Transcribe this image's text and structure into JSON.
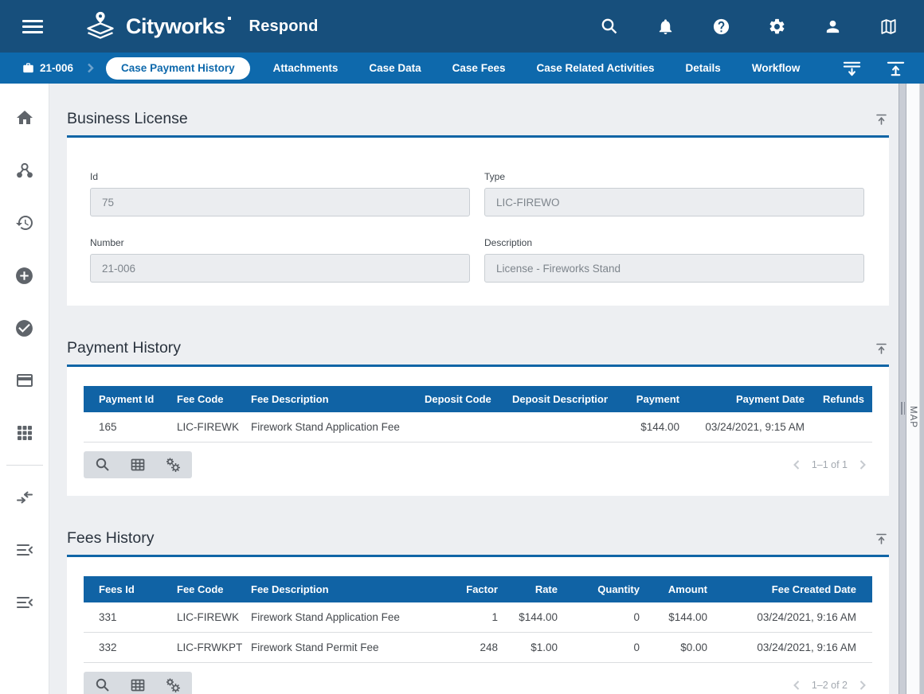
{
  "app": {
    "brand": "Cityworks",
    "product": "Respond"
  },
  "header": {
    "icons": [
      "menu-icon",
      "search-icon",
      "notifications-bell-icon",
      "help-icon",
      "settings-gear-icon",
      "user-icon",
      "map-icon"
    ]
  },
  "case_nav": {
    "case_id": "21-006",
    "active_tab": "Case Payment History",
    "tabs": [
      "Attachments",
      "Case Data",
      "Case Fees",
      "Case Related Activities",
      "Details",
      "Workflow"
    ],
    "icons": [
      "briefcase-icon",
      "expand-all-sections-icon",
      "scroll-to-top-icon"
    ]
  },
  "sidebar": {
    "icons": [
      "home-icon",
      "relationships-icon",
      "history-icon",
      "add-circle-icon",
      "check-circle-icon",
      "credit-card-icon",
      "apps-grid-icon",
      "dock-panel-icon",
      "collapse-menu-icon",
      "collapse-menu-icon"
    ]
  },
  "business_license": {
    "title": "Business License",
    "fields": [
      {
        "label": "Id",
        "value": "75"
      },
      {
        "label": "Type",
        "value": "LIC-FIREWO"
      },
      {
        "label": "Number",
        "value": "21-006"
      },
      {
        "label": "Description",
        "value": "License - Fireworks Stand"
      }
    ]
  },
  "payment_history": {
    "title": "Payment History",
    "columns": [
      "Payment Id",
      "Fee Code",
      "Fee Description",
      "Deposit Code",
      "Deposit Description",
      "Payment",
      "Payment Date",
      "Refunds"
    ],
    "rows": [
      [
        "165",
        "LIC-FIREWK",
        "Firework Stand Application Fee",
        "",
        "",
        "$144.00",
        "03/24/2021, 9:15 AM",
        ""
      ]
    ],
    "pager": "1–1 of 1"
  },
  "fees_history": {
    "title": "Fees History",
    "columns": [
      "Fees Id",
      "Fee Code",
      "Fee Description",
      "Factor",
      "Rate",
      "Quantity",
      "Amount",
      "Fee Created Date"
    ],
    "rows": [
      [
        "331",
        "LIC-FIREWK",
        "Firework Stand Application Fee",
        "1",
        "$144.00",
        "0",
        "$144.00",
        "03/24/2021, 9:16 AM"
      ],
      [
        "332",
        "LIC-FRWKPT",
        "Firework Stand Permit Fee",
        "248",
        "$1.00",
        "0",
        "$0.00",
        "03/24/2021, 9:16 AM"
      ]
    ],
    "pager": "1–2 of 2"
  },
  "map_panel": {
    "label": "MAP"
  },
  "grid_toolbar_icons": [
    "search-icon",
    "column-settings-grid-icon",
    "grid-options-gears-icon"
  ],
  "colors": {
    "topbar": "#174f7c",
    "navbar": "#0e69ac",
    "accent": "#1065a6",
    "table_header": "#1063a5"
  }
}
